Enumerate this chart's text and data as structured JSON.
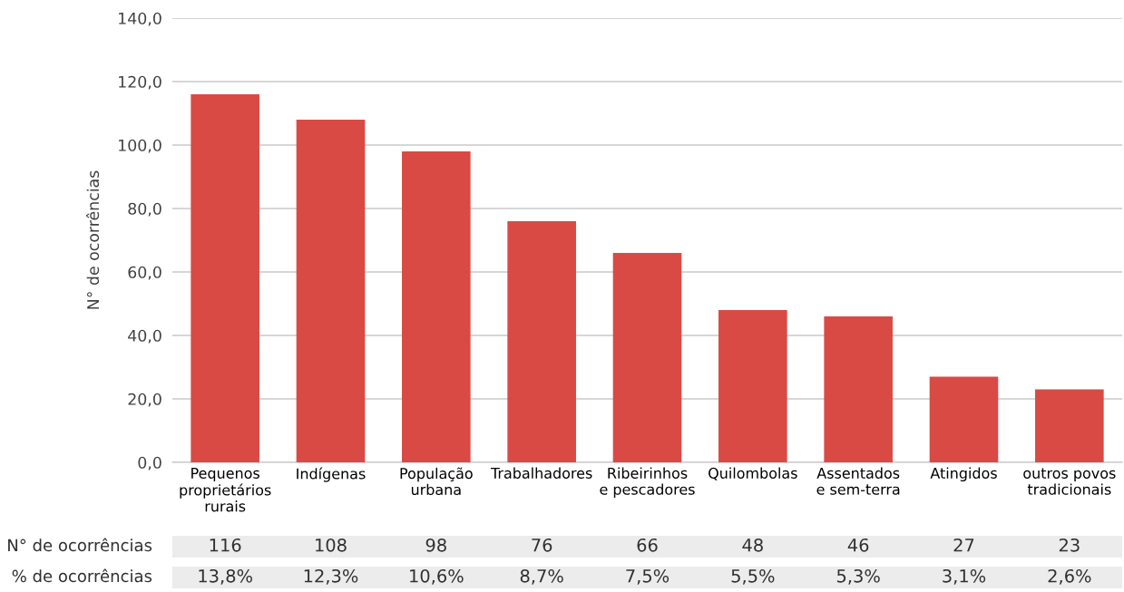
{
  "chart_data": {
    "type": "bar",
    "ylabel": "N° de ocorrências",
    "categories": [
      "Pequenos\nproprietários\nrurais",
      "Indígenas",
      "População\nurbana",
      "Trabalhadores",
      "Ribeirinhos\ne pescadores",
      "Quilombolas",
      "Assentados\ne sem-terra",
      "Atingidos",
      "outros povos\ntradicionais"
    ],
    "series": [
      {
        "name": "N° de ocorrências",
        "color": "#d94a45",
        "values": [
          116,
          108,
          98,
          76,
          66,
          48,
          46,
          27,
          23
        ]
      }
    ],
    "data_labels": true,
    "annotations": [
      "% de ocorrências",
      "13,8%",
      "12,3%",
      "10,6%",
      "8,7%",
      "7,5%",
      "5,5%",
      "5,3%",
      "3,1%",
      "2,6%"
    ],
    "ylim": [
      0,
      140
    ],
    "yticks": [
      {
        "value": 0,
        "label": "0,0"
      },
      {
        "value": 20,
        "label": "20,0"
      },
      {
        "value": 40,
        "label": "40,0"
      },
      {
        "value": 60,
        "label": "60,0"
      },
      {
        "value": 80,
        "label": "80,0"
      },
      {
        "value": 100,
        "label": "100,0"
      },
      {
        "value": 120,
        "label": "120,0"
      },
      {
        "value": 140,
        "label": "140,0"
      }
    ],
    "grid": "y",
    "legend": false
  }
}
